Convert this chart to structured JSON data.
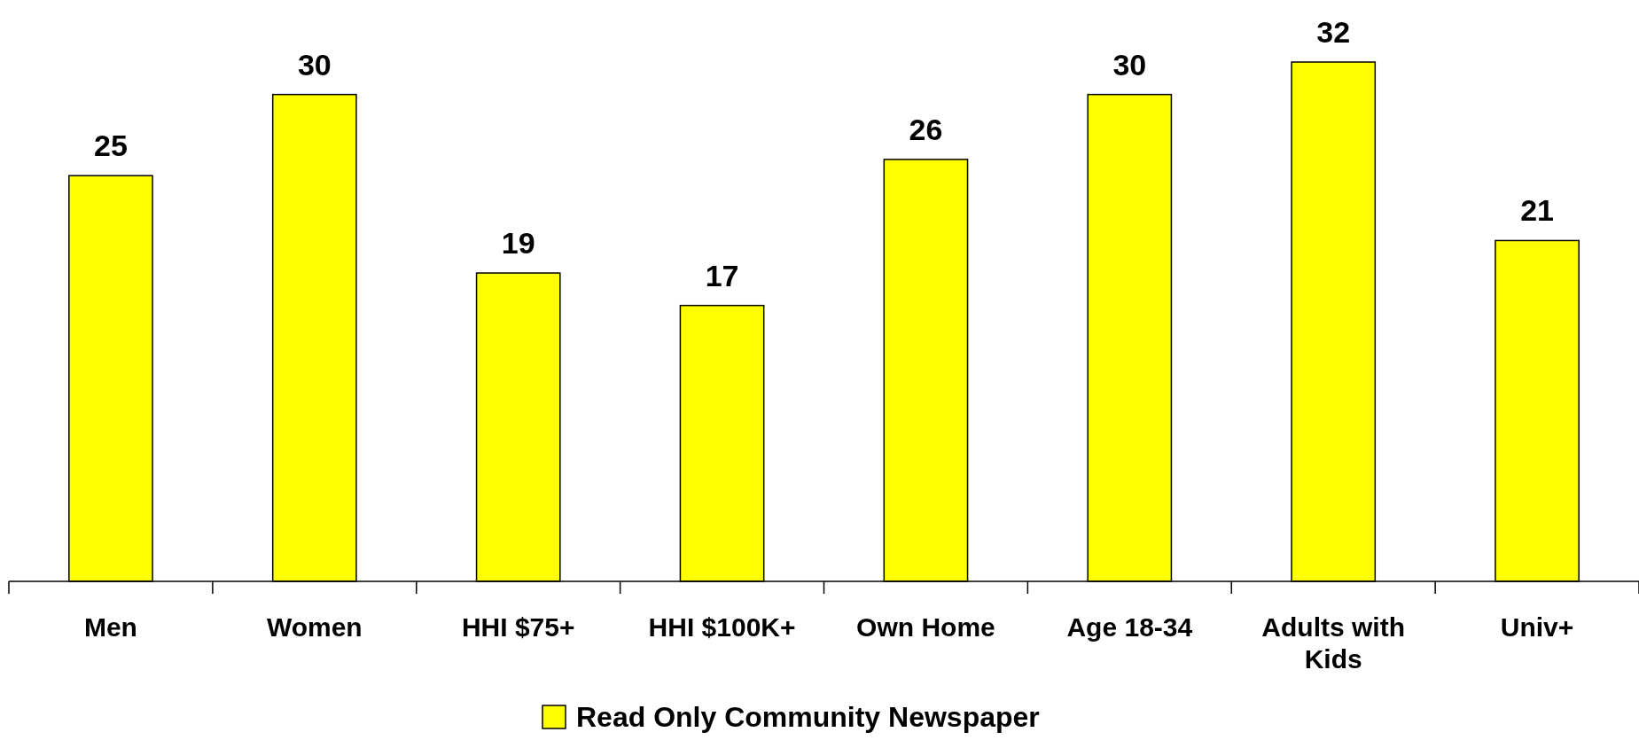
{
  "chart_data": {
    "type": "bar",
    "categories": [
      "Men",
      "Women",
      "HHI $75+",
      "HHI $100K+",
      "Own Home",
      "Age 18-34",
      "Adults with Kids",
      "Univ+"
    ],
    "series": [
      {
        "name": "Read Only Community Newspaper",
        "color": "#ffff00",
        "values": [
          25,
          30,
          19,
          17,
          26,
          30,
          32,
          21
        ]
      }
    ],
    "data_labels": true,
    "legend": "bottom"
  }
}
